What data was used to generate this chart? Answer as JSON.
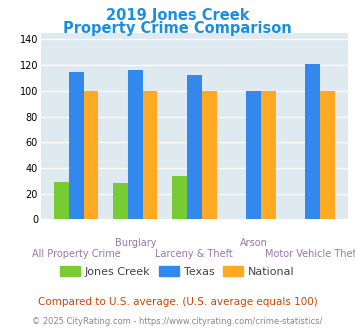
{
  "title_line1": "2019 Jones Creek",
  "title_line2": "Property Crime Comparison",
  "title_color": "#1a8fe0",
  "groups": [
    "All Property Crime",
    "Burglary",
    "Larceny & Theft",
    "Arson",
    "Motor Vehicle Theft"
  ],
  "jones_creek": [
    29,
    28,
    34,
    0,
    0
  ],
  "texas": [
    115,
    116,
    112,
    100,
    121
  ],
  "national": [
    100,
    100,
    100,
    100,
    100
  ],
  "jones_creek_color": "#77cc33",
  "texas_color": "#3388ee",
  "national_color": "#ffaa22",
  "ylim": [
    0,
    145
  ],
  "yticks": [
    0,
    20,
    40,
    60,
    80,
    100,
    120,
    140
  ],
  "plot_bg": "#deeaf0",
  "footnote1": "Compared to U.S. average. (U.S. average equals 100)",
  "footnote2": "© 2025 CityRating.com - https://www.cityrating.com/crime-statistics/",
  "footnote1_color": "#cc4400",
  "footnote2_color": "#888888",
  "legend_labels": [
    "Jones Creek",
    "Texas",
    "National"
  ],
  "top_xlabels": {
    "1": "Burglary",
    "3": "Arson"
  },
  "bottom_xlabels": {
    "0": "All Property Crime",
    "2": "Larceny & Theft",
    "4": "Motor Vehicle Theft"
  },
  "xlabel_color": "#9977aa",
  "bar_width": 0.25
}
